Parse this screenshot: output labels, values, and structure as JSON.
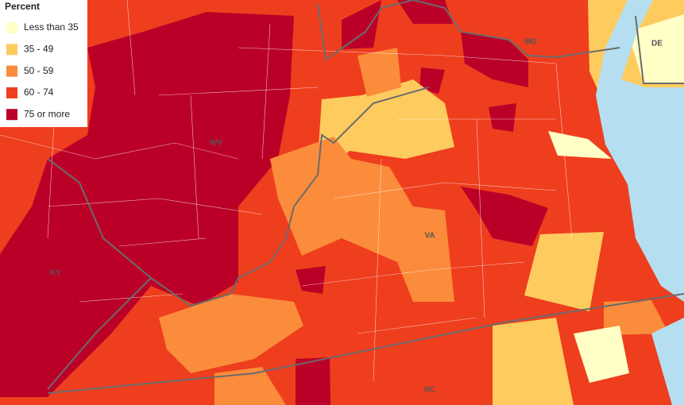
{
  "legend": {
    "title": "Percent",
    "items": [
      {
        "label": "Less than 35",
        "color": "#ffffc6"
      },
      {
        "label": "35 - 49",
        "color": "#fecb5e"
      },
      {
        "label": "50 - 59",
        "color": "#fb8c3b"
      },
      {
        "label": "60 - 74",
        "color": "#ee3e1e"
      },
      {
        "label": "75 or more",
        "color": "#bb0028"
      }
    ]
  },
  "state_labels": [
    "WV",
    "MD",
    "DE",
    "KY",
    "VA",
    "NC"
  ]
}
